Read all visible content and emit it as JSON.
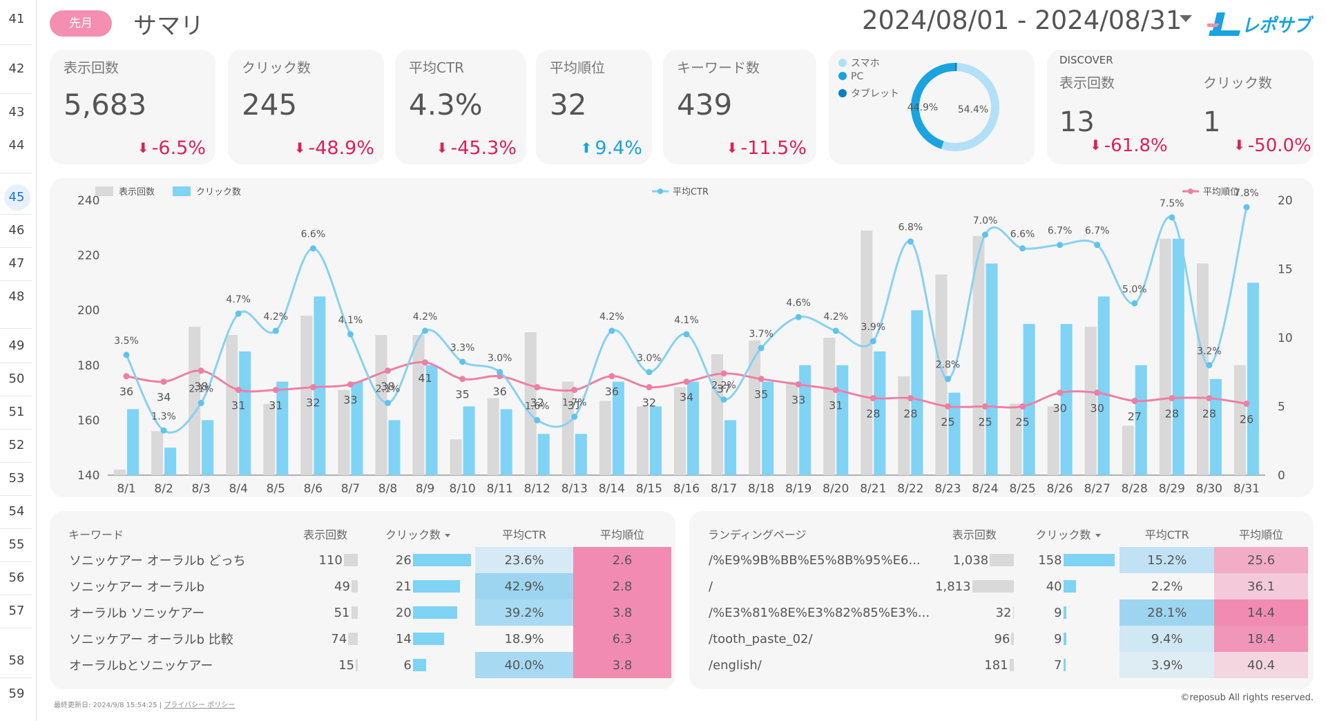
{
  "gutter": {
    "rows": [
      "41",
      "42",
      "43",
      "44",
      "45",
      "46",
      "47",
      "48",
      "49",
      "50",
      "51",
      "52",
      "53",
      "54",
      "55",
      "56",
      "57",
      "58",
      "59"
    ],
    "selected": "45"
  },
  "header": {
    "period_badge": "先月",
    "title": "サマリ",
    "date_range": "2024/08/01 - 2024/08/31",
    "logo_text": "レポサブ"
  },
  "kpis": [
    {
      "label": "表示回数",
      "value": "5,683",
      "delta": "-6.5%",
      "dir": "down"
    },
    {
      "label": "クリック数",
      "value": "245",
      "delta": "-48.9%",
      "dir": "down"
    },
    {
      "label": "平均CTR",
      "value": "4.3%",
      "delta": "-45.3%",
      "dir": "down"
    },
    {
      "label": "平均順位",
      "value": "32",
      "delta": "9.4%",
      "dir": "up"
    },
    {
      "label": "キーワード数",
      "value": "439",
      "delta": "-11.5%",
      "dir": "down"
    }
  ],
  "devices": {
    "legend": [
      {
        "label": "スマホ",
        "color": "#b3e0f7"
      },
      {
        "label": "PC",
        "color": "#1aa3e0"
      },
      {
        "label": "タブレット",
        "color": "#0b7dc4"
      }
    ],
    "slices": [
      {
        "label": "PC",
        "pct": 44.9,
        "text": "44.9%",
        "color": "#1aa3e0"
      },
      {
        "label": "スマホ",
        "pct": 54.4,
        "text": "54.4%",
        "color": "#b3e0f7"
      },
      {
        "label": "タブレット",
        "pct": 0.7,
        "text": "",
        "color": "#0b7dc4"
      }
    ]
  },
  "discover": {
    "title": "DISCOVER",
    "metrics": [
      {
        "label": "表示回数",
        "value": "13",
        "delta": "-61.8%"
      },
      {
        "label": "クリック数",
        "value": "1",
        "delta": "-50.0%"
      }
    ]
  },
  "chart_data": {
    "type": "bar",
    "categories": [
      "8/1",
      "8/2",
      "8/3",
      "8/4",
      "8/5",
      "8/6",
      "8/7",
      "8/8",
      "8/9",
      "8/10",
      "8/11",
      "8/12",
      "8/13",
      "8/14",
      "8/15",
      "8/16",
      "8/17",
      "8/18",
      "8/19",
      "8/20",
      "8/21",
      "8/22",
      "8/23",
      "8/24",
      "8/25",
      "8/26",
      "8/27",
      "8/28",
      "8/29",
      "8/30",
      "8/31"
    ],
    "ylim_left": [
      140,
      240
    ],
    "yticks_left": [
      140,
      160,
      180,
      200,
      220,
      240
    ],
    "ylim_right": [
      0,
      20
    ],
    "yticks_right": [
      0,
      5,
      10,
      15,
      20
    ],
    "legend_left": [
      {
        "name": "表示回数",
        "color": "#d9d9d9"
      },
      {
        "name": "クリック数",
        "color": "#7fd3f5"
      }
    ],
    "legend_ctr": {
      "name": "平均CTR",
      "color": "#87d1f1"
    },
    "legend_rank": {
      "name": "平均順位",
      "color": "#ee7fa4"
    },
    "series": [
      {
        "name": "表示回数",
        "axis": "left",
        "values": [
          142,
          156,
          194,
          191,
          166,
          198,
          171,
          191,
          191,
          153,
          168,
          192,
          174,
          167,
          165,
          172,
          184,
          189,
          174,
          190,
          229,
          176,
          213,
          227,
          166,
          165,
          194,
          158,
          226,
          217,
          180
        ]
      },
      {
        "name": "クリック数",
        "axis": "left",
        "values": [
          164,
          150,
          160,
          185,
          174,
          205,
          174,
          160,
          180,
          165,
          164,
          155,
          155,
          174,
          165,
          174,
          160,
          174,
          180,
          180,
          185,
          200,
          170,
          217,
          195,
          195,
          205,
          180,
          226,
          175,
          210
        ]
      },
      {
        "name": "平均CTR",
        "axis": "right",
        "values": [
          3.5,
          1.3,
          2.1,
          4.7,
          4.2,
          6.6,
          4.1,
          2.1,
          4.2,
          3.3,
          3.0,
          1.6,
          1.7,
          4.2,
          3.0,
          4.1,
          2.2,
          3.7,
          4.6,
          4.2,
          3.9,
          6.8,
          2.8,
          7.0,
          6.6,
          6.7,
          6.7,
          5.0,
          7.5,
          3.2,
          7.8
        ]
      },
      {
        "name": "平均順位",
        "axis": "left",
        "values": [
          36,
          34,
          38,
          31,
          31,
          32,
          33,
          38,
          41,
          35,
          36,
          32,
          31,
          36,
          32,
          34,
          37,
          35,
          33,
          31,
          28,
          28,
          25,
          25,
          25,
          30,
          30,
          27,
          28,
          28,
          26
        ]
      }
    ]
  },
  "kw_table": {
    "headers": [
      "キーワード",
      "表示回数",
      "クリック数",
      "平均CTR",
      "平均順位"
    ],
    "rows": [
      {
        "kw": "ソニッケアー オーラルb どっち",
        "imp": "110",
        "clk": "26",
        "ctr": "23.6%",
        "rank": "2.6"
      },
      {
        "kw": "ソニッケアー オーラルb",
        "imp": "49",
        "clk": "21",
        "ctr": "42.9%",
        "rank": "2.8"
      },
      {
        "kw": "オーラルb ソニッケアー",
        "imp": "51",
        "clk": "20",
        "ctr": "39.2%",
        "rank": "3.8"
      },
      {
        "kw": "ソニッケアー オーラルb 比較",
        "imp": "74",
        "clk": "14",
        "ctr": "18.9%",
        "rank": "6.3"
      },
      {
        "kw": "オーラルbとソニッケアー",
        "imp": "15",
        "clk": "6",
        "ctr": "40.0%",
        "rank": "3.8"
      }
    ]
  },
  "lp_table": {
    "headers": [
      "ランディングページ",
      "表示回数",
      "クリック数",
      "平均CTR",
      "平均順位"
    ],
    "rows": [
      {
        "kw": "/%E9%9B%BB%E5%8B%95%E6...",
        "imp": "1,038",
        "clk": "158",
        "ctr": "15.2%",
        "rank": "25.6"
      },
      {
        "kw": "/",
        "imp": "1,813",
        "clk": "40",
        "ctr": "2.2%",
        "rank": "36.1"
      },
      {
        "kw": "/%E3%81%8E%E3%82%85%E3%...",
        "imp": "32",
        "clk": "9",
        "ctr": "28.1%",
        "rank": "14.4"
      },
      {
        "kw": "/tooth_paste_02/",
        "imp": "96",
        "clk": "9",
        "ctr": "9.4%",
        "rank": "18.4"
      },
      {
        "kw": "/english/",
        "imp": "181",
        "clk": "7",
        "ctr": "3.9%",
        "rank": "40.4"
      }
    ]
  },
  "footer": {
    "updated": "最終更新日: 2024/9/8 15:54:25",
    "separator": "|",
    "privacy": "プライバシー ポリシー",
    "copyright": "©reposub All rights reserved."
  }
}
